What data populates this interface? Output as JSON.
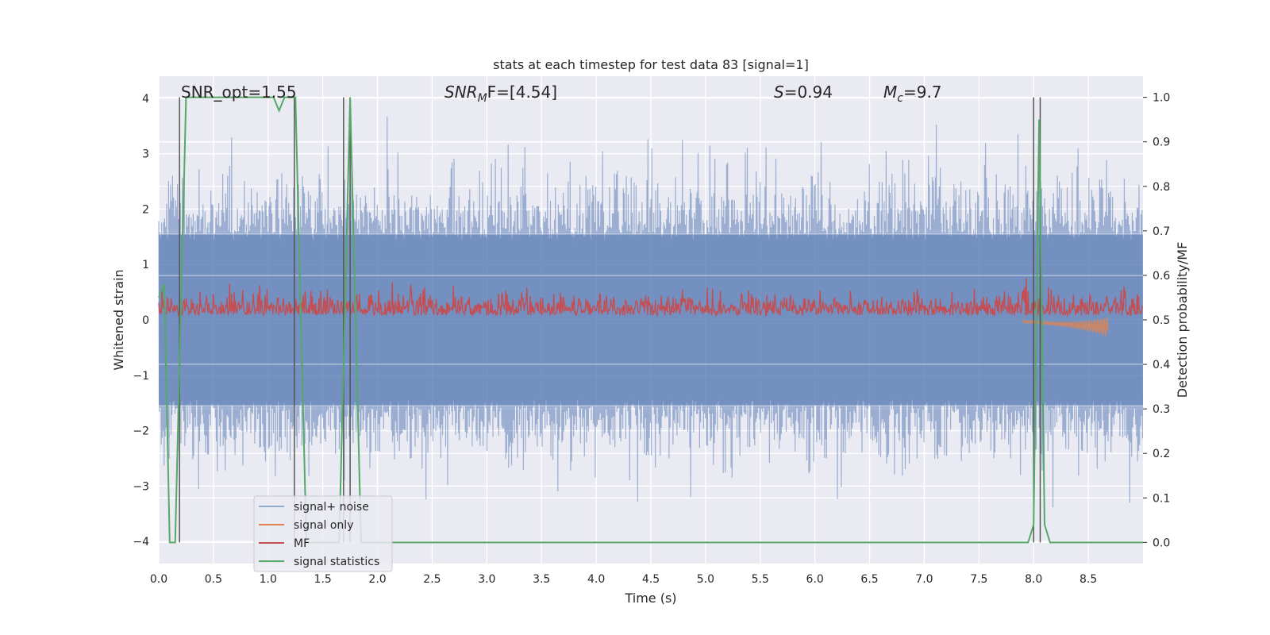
{
  "chart_data": {
    "type": "line",
    "title": "stats at each timestep for test data 83 [signal=1]",
    "xlabel": "Time (s)",
    "ylabel": "Whitened strain",
    "y2label": "Detection probability/MF",
    "xlim": [
      0,
      9.0
    ],
    "ylim": [
      -4.4,
      4.4
    ],
    "y2lim": [
      -0.0475,
      1.0475
    ],
    "grid": true,
    "legend_position": "lower-left",
    "x_ticks": [
      "0.0",
      "0.5",
      "1.0",
      "1.5",
      "2.0",
      "2.5",
      "3.0",
      "3.5",
      "4.0",
      "4.5",
      "5.0",
      "5.5",
      "6.0",
      "6.5",
      "7.0",
      "7.5",
      "8.0",
      "8.5"
    ],
    "y_ticks": [
      "4",
      "3",
      "2",
      "1",
      "0",
      "−1",
      "−2",
      "−3",
      "−4"
    ],
    "y2_ticks": [
      "1.0",
      "0.9",
      "0.8",
      "0.7",
      "0.6",
      "0.5",
      "0.4",
      "0.3",
      "0.2",
      "0.1",
      "0.0"
    ],
    "annotations": [
      {
        "id": "snr-opt",
        "text": "SNR_opt=1.55"
      },
      {
        "id": "snr-mf",
        "text": "SNR_MF=[4.54]",
        "main": "SNR",
        "sub": "M",
        "rest": "F=[4.54]"
      },
      {
        "id": "spin",
        "text": "S=0.94",
        "main": "S",
        "rest": "=0.94"
      },
      {
        "id": "chirp-mass",
        "text": "M_c=9.7",
        "main": "M",
        "sub": "c",
        "rest": "=9.7"
      }
    ],
    "colors": {
      "signal_noise": "#4c72b0",
      "signal_only": "#dd8452",
      "mf": "#c44e52",
      "signal_statistics": "#55a868",
      "vlines": "#555555",
      "background": "#eaeaf2",
      "grid": "#ffffff"
    },
    "series": [
      {
        "name": "signal+ noise",
        "axis": "left",
        "style": "noise",
        "envelope": "approx ±1.5 to ±3 whitened strain, spikes to 4.0 / -4.0"
      },
      {
        "name": "signal only",
        "axis": "left",
        "style": "chirp",
        "x_range": [
          7.9,
          8.68
        ],
        "y_range": [
          -0.2,
          0.1
        ]
      },
      {
        "name": "MF",
        "axis": "right",
        "style": "noise",
        "baseline": 0.51,
        "range": [
          0.5,
          0.6
        ]
      },
      {
        "name": "signal statistics",
        "axis": "right",
        "style": "line",
        "x": [
          0.0,
          0.05,
          0.1,
          0.15,
          0.2,
          0.25,
          0.3,
          0.4,
          0.6,
          0.8,
          1.0,
          1.05,
          1.1,
          1.15,
          1.2,
          1.25,
          1.3,
          1.35,
          1.4,
          1.6,
          1.65,
          1.7,
          1.75,
          1.8,
          1.85,
          1.9,
          2.5,
          3.5,
          4.5,
          5.5,
          6.5,
          7.5,
          7.95,
          8.0,
          8.05,
          8.1,
          8.15,
          8.5,
          9.0
        ],
        "y": [
          0.55,
          0.58,
          0.0,
          0.0,
          0.5,
          1.0,
          1.0,
          1.0,
          1.0,
          1.0,
          1.0,
          1.0,
          0.97,
          1.0,
          1.0,
          1.0,
          0.5,
          0.0,
          0.0,
          0.0,
          0.0,
          0.5,
          1.0,
          0.5,
          0.0,
          0.0,
          0.0,
          0.0,
          0.0,
          0.0,
          0.0,
          0.0,
          0.0,
          0.04,
          0.95,
          0.04,
          0.0,
          0.0,
          0.0
        ]
      }
    ],
    "vlines_x": [
      0.19,
      1.24,
      1.69,
      1.75,
      8.0,
      8.06
    ]
  }
}
